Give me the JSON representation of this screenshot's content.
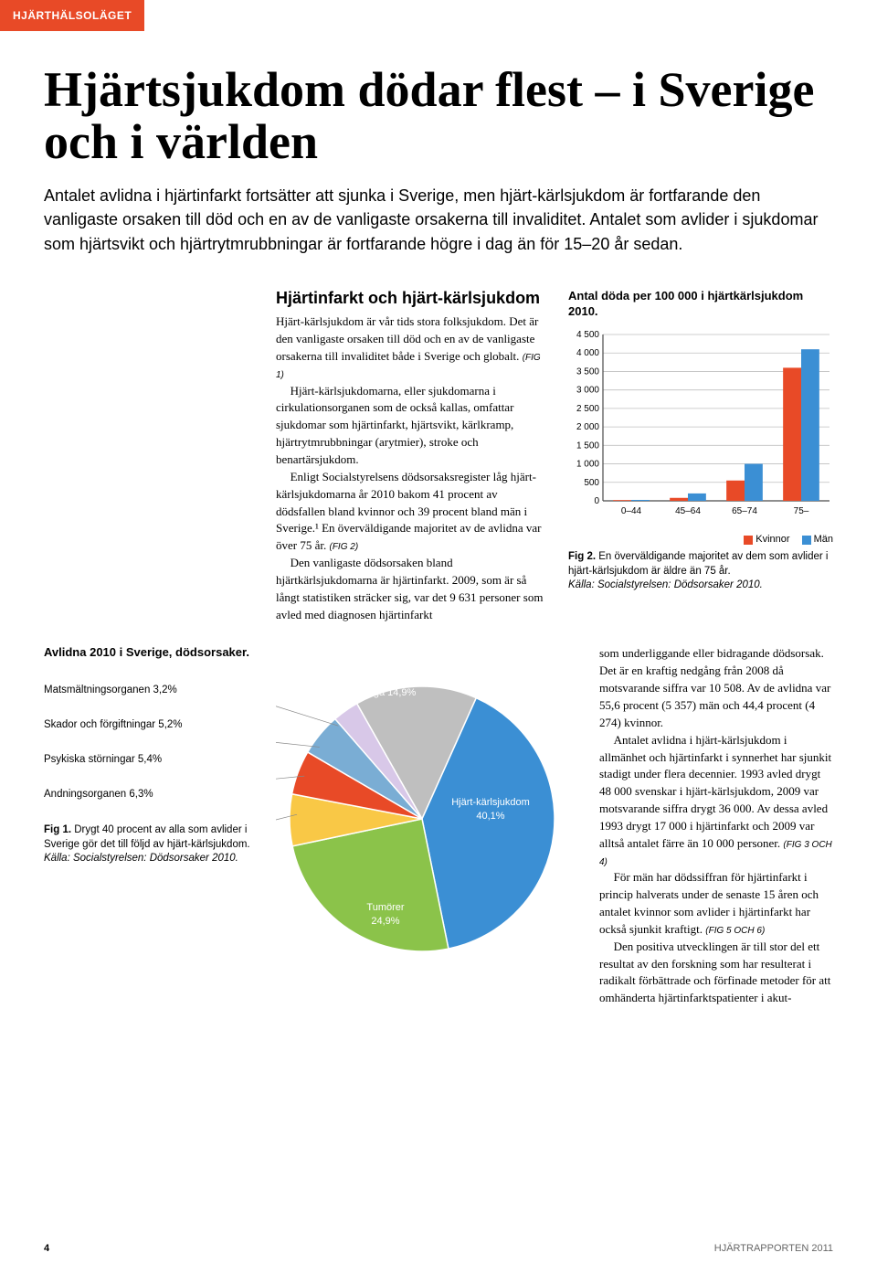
{
  "tag": "HJÄRTHÄLSOLÄGET",
  "title": "Hjärtsjukdom dödar flest – i Sverige och i världen",
  "lead": "Antalet avlidna i hjärtinfarkt fortsätter att sjunka i Sverige, men hjärt-kärlsjukdom är fortfarande den vanligaste orsaken till död och en av de vanligaste orsakerna till invaliditet. Antalet som avlider i sjukdomar som hjärtsvikt och hjärtrytmrubbningar är fortfarande högre i dag än för 15–20 år sedan.",
  "center": {
    "heading": "Hjärtinfarkt och hjärt-kärlsjukdom",
    "p1": "Hjärt-kärlsjukdom är vår tids stora folksjukdom. Det är den vanligaste orsaken till död och en av de vanligaste orsakerna till invaliditet både i Sverige och globalt.",
    "ref1": "(FIG 1)",
    "p2": "Hjärt-kärlsjukdomarna, eller sjukdomarna i cirkulationsorganen som de också kallas, omfattar sjukdomar som hjärtinfarkt, hjärtsvikt, kärlkramp, hjärtrytmrubbningar (arytmier), stroke och benartärsjukdom.",
    "p3a": "Enligt Socialstyrelsens dödsorsaksregister låg hjärt-kärlsjukdomarna år 2010 bakom 41 procent av dödsfallen bland kvinnor och 39 procent bland män i Sverige.¹ En överväldigande majoritet av de avlidna var över 75 år.",
    "ref2": "(FIG 2)",
    "p4": "Den vanligaste dödsorsaken bland hjärtkärlsjukdomarna är hjärtinfarkt. 2009, som är så långt statistiken sträcker sig, var det 9 631 personer som avled med diagnosen hjärtinfarkt"
  },
  "right": {
    "chart_title": "Antal döda per 100 000 i hjärtkärlsjukdom 2010.",
    "chart": {
      "type": "bar",
      "categories": [
        "0–44",
        "45–64",
        "65–74",
        "75–"
      ],
      "series": [
        {
          "name": "Kvinnor",
          "color": "#e84a27",
          "values": [
            20,
            80,
            550,
            3600
          ]
        },
        {
          "name": "Män",
          "color": "#3b8fd4",
          "values": [
            25,
            200,
            1000,
            4100
          ]
        }
      ],
      "ylim": [
        0,
        4500
      ],
      "ytick_step": 500,
      "yticks": [
        "0",
        "500",
        "1 000",
        "1 500",
        "2 000",
        "2 500",
        "3 000",
        "3 500",
        "4 000",
        "4 500"
      ],
      "grid_color": "#bfbfbf",
      "axis_color": "#4a4a4a",
      "bar_width": 0.32,
      "background_color": "#ffffff",
      "tick_fontsize": 10
    },
    "legend": {
      "kvinnor": "Kvinnor",
      "man": "Män"
    },
    "caption_fig": "Fig 2.",
    "caption_text": "En överväldigande majoritet av dem som avlider i hjärt-kärlsjukdom är äldre än 75 år.",
    "caption_src": "Källa: Socialstyrelsen: Dödsorsaker 2010."
  },
  "lower_right": {
    "p1": "som underliggande eller bidragande dödsorsak. Det är en kraftig nedgång från 2008 då motsvarande siffra var 10 508. Av de avlidna var 55,6 procent (5 357) män och 44,4 procent (4 274) kvinnor.",
    "p2": "Antalet avlidna i hjärt-kärlsjukdom i allmänhet och hjärtinfarkt i synnerhet har sjunkit stadigt under flera decennier. 1993 avled drygt 48 000 svenskar i hjärt-kärlsjukdom, 2009 var motsvarande siffra drygt 36 000. Av dessa avled 1993 drygt 17 000 i hjärtinfarkt och 2009 var alltså antalet färre än 10 000 personer.",
    "ref1": "(FIG 3 OCH 4)",
    "p3": "För män har dödssiffran för hjärtinfarkt i princip halverats under de senaste 15 åren och antalet kvinnor som avlider i hjärtinfarkt har också sjunkit kraftigt.",
    "ref2": "(FIG 5 OCH 6)",
    "p4": "Den positiva utvecklingen är till stor del ett resultat av den forskning som har resulterat i radikalt förbättrade och förfinade metoder för att omhänderta hjärtinfarktspatienter i akut-"
  },
  "pie": {
    "title": "Avlidna 2010 i Sverige, dödsorsaker.",
    "type": "pie",
    "slices": [
      {
        "label": "Hjärt-kärlsjukdom 40,1%",
        "value": 40.1,
        "color": "#3b8fd4"
      },
      {
        "label": "Tumörer 24,9%",
        "value": 24.9,
        "color": "#8bc34a"
      },
      {
        "label": "Andningsorganen 6,3%",
        "value": 6.3,
        "color": "#f9c846"
      },
      {
        "label": "Psykiska störningar 5,4%",
        "value": 5.4,
        "color": "#e84a27"
      },
      {
        "label": "Skador och förgiftningar 5,2%",
        "value": 5.2,
        "color": "#7aadd4"
      },
      {
        "label": "Matsmältningsorganen 3,2%",
        "value": 3.2,
        "color": "#d8c8e8"
      },
      {
        "label": "Övriga 14,9%",
        "value": 14.9,
        "color": "#bfbfbf"
      }
    ],
    "items": {
      "i0": "Matsmältningsorganen 3,2%",
      "i1": "Skador och förgiftningar 5,2%",
      "i2": "Psykiska störningar 5,4%",
      "i3": "Andningsorganen 6,3%"
    },
    "labels_on_chart": {
      "ovriga": "Övriga 14,9%",
      "hjart": "Hjärt-kärlsjukdom\n40,1%",
      "tumorer": "Tumörer\n24,9%"
    },
    "caption_fig": "Fig 1.",
    "caption_text": "Drygt 40 procent av alla som avlider i Sverige gör det till följd av hjärt-kärlsjukdom.",
    "caption_src": "Källa: Socialstyrelsen: Dödsorsaker 2010."
  },
  "footer": {
    "pagenum": "4",
    "pubname": "HJÄRTRAPPORTEN 2011"
  }
}
